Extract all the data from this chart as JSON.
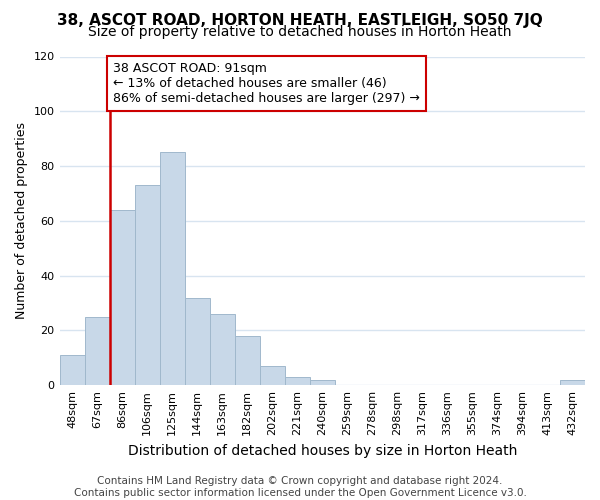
{
  "title1": "38, ASCOT ROAD, HORTON HEATH, EASTLEIGH, SO50 7JQ",
  "title2": "Size of property relative to detached houses in Horton Heath",
  "xlabel": "Distribution of detached houses by size in Horton Heath",
  "ylabel": "Number of detached properties",
  "footer1": "Contains HM Land Registry data © Crown copyright and database right 2024.",
  "footer2": "Contains public sector information licensed under the Open Government Licence v3.0.",
  "annotation_line1": "38 ASCOT ROAD: 91sqm",
  "annotation_line2": "← 13% of detached houses are smaller (46)",
  "annotation_line3": "86% of semi-detached houses are larger (297) →",
  "property_bin_index": 2,
  "categories": [
    "48sqm",
    "67sqm",
    "86sqm",
    "106sqm",
    "125sqm",
    "144sqm",
    "163sqm",
    "182sqm",
    "202sqm",
    "221sqm",
    "240sqm",
    "259sqm",
    "278sqm",
    "298sqm",
    "317sqm",
    "336sqm",
    "355sqm",
    "374sqm",
    "394sqm",
    "413sqm",
    "432sqm"
  ],
  "values": [
    11,
    25,
    64,
    73,
    85,
    32,
    26,
    18,
    7,
    3,
    2,
    0,
    0,
    0,
    0,
    0,
    0,
    0,
    0,
    0,
    2
  ],
  "bar_color": "#c8d8e8",
  "bar_edge_color": "#a0b8cc",
  "vline_color": "#cc0000",
  "annotation_box_edge": "#cc0000",
  "annotation_box_face": "#ffffff",
  "background_color": "#ffffff",
  "plot_bg_color": "#ffffff",
  "grid_color": "#d8e4f0",
  "ylim": [
    0,
    120
  ],
  "yticks": [
    0,
    20,
    40,
    60,
    80,
    100,
    120
  ],
  "title1_fontsize": 11,
  "title2_fontsize": 10,
  "xlabel_fontsize": 10,
  "ylabel_fontsize": 9,
  "tick_fontsize": 8,
  "xtick_fontsize": 8,
  "footer_fontsize": 7.5,
  "annotation_fontsize": 9
}
